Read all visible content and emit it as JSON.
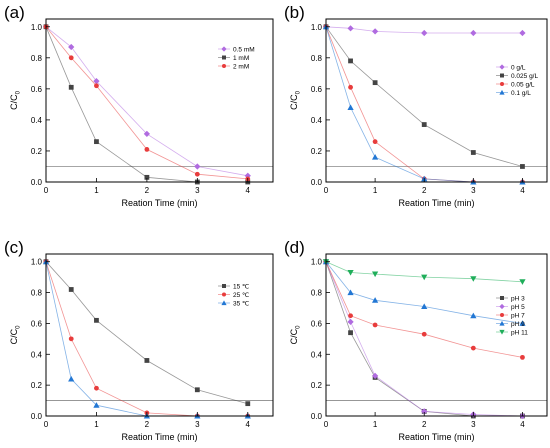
{
  "chart_data": [
    {
      "panel_label": "(a)",
      "type": "line",
      "xlabel": "Reation Time (min)",
      "ylabel_main": "C/C",
      "ylabel_sub": "0",
      "xlim": [
        0,
        4.5
      ],
      "ylim": [
        0,
        1.05
      ],
      "xticks": [
        0,
        1,
        2,
        3,
        4
      ],
      "yticks": [
        0.0,
        0.2,
        0.4,
        0.6,
        0.8,
        1.0
      ],
      "ytick_labels": [
        "0.0",
        "0.2",
        "0.4",
        "0.6",
        "0.8",
        "1.0"
      ],
      "reference_line": 0.1,
      "grid": false,
      "legend": "top-right",
      "series": [
        {
          "name": "0.5 mM",
          "color": "#b06be0",
          "marker": "diamond",
          "x": [
            0,
            0.5,
            1,
            2,
            3,
            4
          ],
          "y": [
            1.0,
            0.87,
            0.65,
            0.31,
            0.1,
            0.04
          ]
        },
        {
          "name": "1 mM",
          "color": "#444444",
          "marker": "square",
          "x": [
            0,
            0.5,
            1,
            2,
            3,
            4
          ],
          "y": [
            1.0,
            0.61,
            0.26,
            0.03,
            0.0,
            0.0
          ]
        },
        {
          "name": "2 mM",
          "color": "#e83c3c",
          "marker": "circle",
          "x": [
            0,
            0.5,
            1,
            2,
            3,
            4
          ],
          "y": [
            1.0,
            0.8,
            0.62,
            0.21,
            0.05,
            0.02
          ]
        }
      ]
    },
    {
      "panel_label": "(b)",
      "type": "line",
      "xlabel": "Reation Time (min)",
      "ylabel_main": "C/C",
      "ylabel_sub": "0",
      "xlim": [
        0,
        4.5
      ],
      "ylim": [
        0,
        1.05
      ],
      "xticks": [
        0,
        1,
        2,
        3,
        4
      ],
      "yticks": [
        0.0,
        0.2,
        0.4,
        0.6,
        0.8,
        1.0
      ],
      "ytick_labels": [
        "0.0",
        "0.2",
        "0.4",
        "0.6",
        "0.8",
        "1.0"
      ],
      "reference_line": 0.1,
      "grid": false,
      "legend": "right",
      "series": [
        {
          "name": "0 g/L",
          "color": "#b06be0",
          "marker": "diamond",
          "x": [
            0,
            0.5,
            1,
            2,
            3,
            4
          ],
          "y": [
            1.0,
            0.99,
            0.97,
            0.96,
            0.96,
            0.96
          ]
        },
        {
          "name": "0.025 g/L",
          "color": "#444444",
          "marker": "square",
          "x": [
            0,
            0.5,
            1,
            2,
            3,
            4
          ],
          "y": [
            1.0,
            0.78,
            0.64,
            0.37,
            0.19,
            0.1
          ]
        },
        {
          "name": "0.05 g/L",
          "color": "#e83c3c",
          "marker": "circle",
          "x": [
            0,
            0.5,
            1,
            2,
            3,
            4
          ],
          "y": [
            1.0,
            0.61,
            0.26,
            0.02,
            0.0,
            0.0
          ]
        },
        {
          "name": "0.1 g/L",
          "color": "#2277d4",
          "marker": "triangle",
          "x": [
            0,
            0.5,
            1,
            2,
            3,
            4
          ],
          "y": [
            1.0,
            0.48,
            0.16,
            0.02,
            0.0,
            0.0
          ]
        }
      ]
    },
    {
      "panel_label": "(c)",
      "type": "line",
      "xlabel": "Reation Time (min)",
      "ylabel_main": "C/C",
      "ylabel_sub": "0",
      "xlim": [
        0,
        4.5
      ],
      "ylim": [
        0,
        1.05
      ],
      "xticks": [
        0,
        1,
        2,
        3,
        4
      ],
      "yticks": [
        0.0,
        0.2,
        0.4,
        0.6,
        0.8,
        1.0
      ],
      "ytick_labels": [
        "0.0",
        "0.2",
        "0.4",
        "0.6",
        "0.8",
        "1.0"
      ],
      "reference_line": 0.1,
      "grid": false,
      "legend": "top-right",
      "series": [
        {
          "name": "15 ℃",
          "color": "#444444",
          "marker": "square",
          "x": [
            0,
            0.5,
            1,
            2,
            3,
            4
          ],
          "y": [
            1.0,
            0.82,
            0.62,
            0.36,
            0.17,
            0.08
          ]
        },
        {
          "name": "25 ℃",
          "color": "#e83c3c",
          "marker": "circle",
          "x": [
            0,
            0.5,
            1,
            2,
            3,
            4
          ],
          "y": [
            1.0,
            0.5,
            0.18,
            0.02,
            0.0,
            0.0
          ]
        },
        {
          "name": "35 ℃",
          "color": "#2277d4",
          "marker": "triangle",
          "x": [
            0,
            0.5,
            1,
            2,
            3,
            4
          ],
          "y": [
            1.0,
            0.24,
            0.07,
            0.0,
            0.0,
            0.0
          ]
        }
      ]
    },
    {
      "panel_label": "(d)",
      "type": "line",
      "xlabel": "Reation Time (min)",
      "ylabel_main": "C/C",
      "ylabel_sub": "0",
      "xlim": [
        0,
        4.5
      ],
      "ylim": [
        0,
        1.05
      ],
      "xticks": [
        0,
        1,
        2,
        3,
        4
      ],
      "yticks": [
        0.0,
        0.2,
        0.4,
        0.6,
        0.8,
        1.0
      ],
      "ytick_labels": [
        "0.0",
        "0.2",
        "0.4",
        "0.6",
        "0.8",
        "1.0"
      ],
      "reference_line": 0.1,
      "grid": false,
      "legend": "right",
      "series": [
        {
          "name": "pH 3",
          "color": "#444444",
          "marker": "square",
          "x": [
            0,
            0.5,
            1,
            2,
            3,
            4
          ],
          "y": [
            1.0,
            0.54,
            0.25,
            0.03,
            0.0,
            0.0
          ]
        },
        {
          "name": "pH 5",
          "color": "#b06be0",
          "marker": "diamond",
          "x": [
            0,
            0.5,
            1,
            2,
            3,
            4
          ],
          "y": [
            1.0,
            0.61,
            0.26,
            0.03,
            0.01,
            0.0
          ]
        },
        {
          "name": "pH 7",
          "color": "#e83c3c",
          "marker": "circle",
          "x": [
            0,
            0.5,
            1,
            2,
            3,
            4
          ],
          "y": [
            1.0,
            0.65,
            0.59,
            0.53,
            0.44,
            0.38
          ]
        },
        {
          "name": "pH 9",
          "color": "#2277d4",
          "marker": "triangle",
          "x": [
            0,
            0.5,
            1,
            2,
            3,
            4
          ],
          "y": [
            1.0,
            0.8,
            0.75,
            0.71,
            0.65,
            0.6
          ]
        },
        {
          "name": "pH 11",
          "color": "#1fae5a",
          "marker": "triangle-down",
          "x": [
            0,
            0.5,
            1,
            2,
            3,
            4
          ],
          "y": [
            1.0,
            0.93,
            0.92,
            0.9,
            0.89,
            0.87
          ]
        }
      ]
    }
  ]
}
